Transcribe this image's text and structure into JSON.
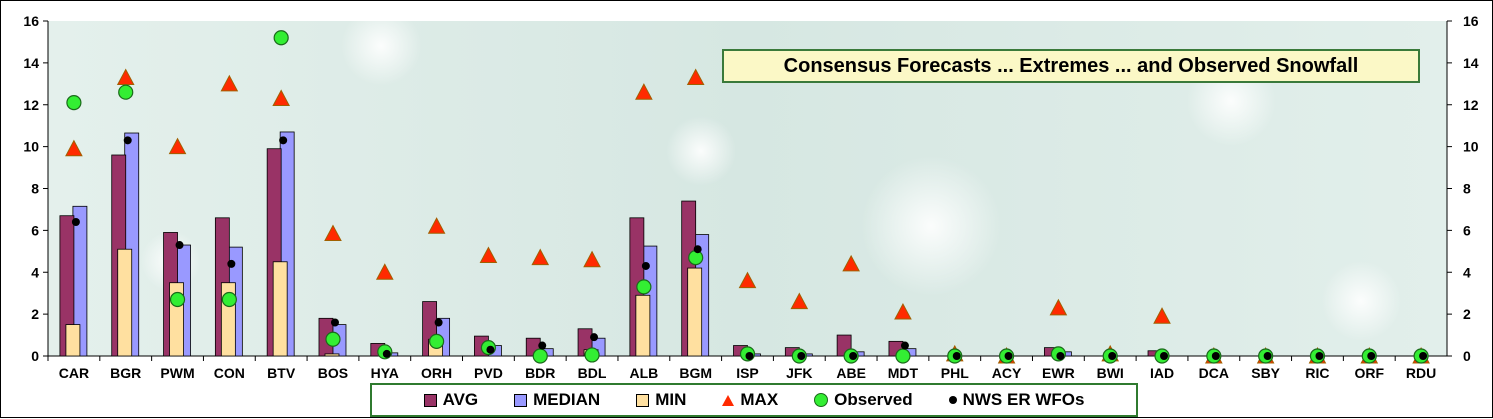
{
  "chart_data": {
    "type": "bar",
    "title": "Consensus Forecasts ... Extremes ... and Observed Snowfall",
    "categories": [
      "CAR",
      "BGR",
      "PWM",
      "CON",
      "BTV",
      "BOS",
      "HYA",
      "ORH",
      "PVD",
      "BDR",
      "BDL",
      "ALB",
      "BGM",
      "ISP",
      "JFK",
      "ABE",
      "MDT",
      "PHL",
      "ACY",
      "EWR",
      "BWI",
      "IAD",
      "DCA",
      "SBY",
      "RIC",
      "ORF",
      "RDU"
    ],
    "ylim": [
      0,
      16
    ],
    "yticks": [
      "0",
      "2",
      "4",
      "6",
      "8",
      "10",
      "12",
      "14",
      "16"
    ],
    "grid": false,
    "legend_position": "bottom",
    "series": [
      {
        "name": "AVG",
        "mark": "bar",
        "color": "#993366",
        "values": [
          6.7,
          9.6,
          5.9,
          6.6,
          9.9,
          1.8,
          0.6,
          2.6,
          0.95,
          0.85,
          1.3,
          6.6,
          7.4,
          0.5,
          0.4,
          1.0,
          0.7,
          0,
          0,
          0.4,
          0,
          0.25,
          0,
          0,
          0,
          0,
          0
        ]
      },
      {
        "name": "MEDIAN",
        "mark": "bar",
        "color": "#9999ff",
        "values": [
          7.15,
          10.65,
          5.3,
          5.2,
          10.7,
          1.5,
          0.15,
          1.8,
          0.5,
          0.35,
          0.85,
          5.25,
          5.8,
          0.1,
          0.1,
          0.2,
          0.35,
          0,
          0,
          0.2,
          0,
          0,
          0,
          0,
          0,
          0,
          0
        ]
      },
      {
        "name": "MIN",
        "mark": "bar",
        "color": "#ffe0a0",
        "values": [
          1.5,
          5.1,
          3.5,
          3.5,
          4.5,
          0.1,
          0,
          0.8,
          0,
          0,
          0.3,
          2.9,
          4.2,
          0,
          0,
          0,
          0,
          0,
          0,
          0,
          0,
          0,
          0,
          0,
          0,
          0,
          0
        ]
      },
      {
        "name": "MAX",
        "mark": "triangle",
        "color": "#ff2a00",
        "values": [
          9.9,
          13.3,
          10,
          13,
          12.3,
          5.85,
          4,
          6.2,
          4.8,
          4.7,
          4.6,
          12.6,
          13.3,
          3.6,
          2.6,
          4.4,
          2.1,
          0.1,
          0,
          2.3,
          0.1,
          1.9,
          0,
          0,
          0,
          0,
          0
        ]
      },
      {
        "name": "Observed",
        "mark": "circle",
        "color": "#33ee33",
        "values": [
          12.1,
          null,
          2.7,
          2.7,
          15.2,
          0.8,
          0.2,
          0.7,
          0.4,
          0,
          0.05,
          3.3,
          4.7,
          0.1,
          0,
          0,
          0,
          0,
          0,
          0.1,
          0,
          0,
          0,
          0,
          0,
          0,
          0
        ]
      },
      {
        "name": "NWS ER WFOs",
        "mark": "dot",
        "color": "#000000",
        "values": [
          6.4,
          10.3,
          5.3,
          4.4,
          10.3,
          1.6,
          0.1,
          1.6,
          0.3,
          0.5,
          0.9,
          4.3,
          5.1,
          0,
          0,
          0,
          0.5,
          0,
          0,
          0,
          0,
          0,
          0,
          0,
          0,
          0,
          0
        ]
      }
    ],
    "observed_marks": {
      "BGR": 12.6
    }
  }
}
